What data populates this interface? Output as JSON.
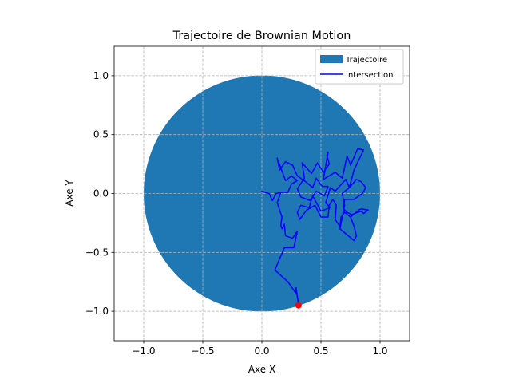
{
  "chart_data": {
    "type": "line",
    "title": "Trajectoire de Brownian Motion",
    "xlabel": "Axe X",
    "ylabel": "Axe Y",
    "xlim": [
      -1.25,
      1.25
    ],
    "ylim": [
      -1.25,
      1.25
    ],
    "aspect": "equal",
    "grid": true,
    "grid_style": "dashed",
    "legend_position": "upper-right",
    "xticks": [
      -1.0,
      -0.5,
      0.0,
      0.5,
      1.0
    ],
    "xtick_labels": [
      "−1.0",
      "−0.5",
      "0.0",
      "0.5",
      "1.0"
    ],
    "yticks": [
      -1.0,
      -0.5,
      0.0,
      0.5,
      1.0
    ],
    "ytick_labels": [
      "−1.0",
      "−0.5",
      "0.0",
      "0.5",
      "1.0"
    ],
    "circle": {
      "name": "Trajectoire",
      "center": [
        0,
        0
      ],
      "radius": 1.0,
      "color": "#1f77b4"
    },
    "series": [
      {
        "name": "Intersection",
        "color": "#0000ff",
        "points": [
          [
            0.0,
            0.02
          ],
          [
            0.06,
            0.0
          ],
          [
            0.09,
            -0.06
          ],
          [
            0.12,
            0.0
          ],
          [
            0.16,
            0.01
          ],
          [
            0.13,
            -0.08
          ],
          [
            0.17,
            -0.2
          ],
          [
            0.16,
            -0.27
          ],
          [
            0.17,
            -0.3
          ],
          [
            0.19,
            -0.26
          ],
          [
            0.2,
            -0.36
          ],
          [
            0.26,
            -0.38
          ],
          [
            0.3,
            -0.32
          ],
          [
            0.27,
            -0.46
          ],
          [
            0.19,
            -0.46
          ],
          [
            0.11,
            -0.65
          ],
          [
            0.22,
            -0.75
          ],
          [
            0.29,
            -0.85
          ],
          [
            0.29,
            -0.8
          ],
          [
            0.31,
            -0.95
          ]
        ]
      },
      {
        "name": "",
        "color": "#0000ff",
        "points": [
          [
            0.16,
            0.01
          ],
          [
            0.22,
            0.01
          ],
          [
            0.25,
            0.08
          ],
          [
            0.3,
            0.11
          ],
          [
            0.25,
            0.15
          ],
          [
            0.2,
            0.11
          ],
          [
            0.13,
            0.3
          ],
          [
            0.15,
            0.2
          ],
          [
            0.2,
            0.27
          ],
          [
            0.26,
            0.24
          ],
          [
            0.3,
            0.15
          ],
          [
            0.37,
            0.1
          ],
          [
            0.43,
            0.05
          ],
          [
            0.46,
            0.13
          ],
          [
            0.51,
            0.06
          ],
          [
            0.56,
            0.06
          ],
          [
            0.53,
            -0.02
          ],
          [
            0.46,
            0.02
          ],
          [
            0.41,
            -0.06
          ],
          [
            0.33,
            -0.03
          ],
          [
            0.3,
            0.04
          ],
          [
            0.36,
            0.13
          ],
          [
            0.34,
            0.26
          ],
          [
            0.42,
            0.17
          ],
          [
            0.47,
            0.26
          ],
          [
            0.52,
            0.18
          ],
          [
            0.57,
            0.25
          ],
          [
            0.55,
            0.32
          ],
          [
            0.56,
            0.35
          ],
          [
            0.52,
            0.12
          ],
          [
            0.62,
            0.18
          ],
          [
            0.68,
            0.13
          ],
          [
            0.7,
            0.22
          ],
          [
            0.72,
            0.32
          ],
          [
            0.75,
            0.24
          ],
          [
            0.81,
            0.38
          ],
          [
            0.86,
            0.37
          ],
          [
            0.78,
            0.2
          ],
          [
            0.74,
            0.05
          ],
          [
            0.71,
            0.12
          ],
          [
            0.62,
            0.02
          ],
          [
            0.58,
            0.05
          ],
          [
            0.54,
            -0.08
          ],
          [
            0.58,
            -0.12
          ],
          [
            0.5,
            -0.15
          ],
          [
            0.43,
            -0.02
          ],
          [
            0.4,
            -0.12
          ],
          [
            0.33,
            -0.1
          ],
          [
            0.3,
            -0.16
          ],
          [
            0.32,
            -0.22
          ],
          [
            0.38,
            -0.14
          ],
          [
            0.45,
            -0.1
          ],
          [
            0.5,
            -0.2
          ],
          [
            0.56,
            -0.2
          ],
          [
            0.57,
            -0.1
          ],
          [
            0.6,
            -0.05
          ],
          [
            0.63,
            -0.1
          ],
          [
            0.62,
            -0.22
          ],
          [
            0.66,
            -0.28
          ],
          [
            0.67,
            -0.2
          ],
          [
            0.7,
            -0.16
          ],
          [
            0.75,
            -0.2
          ],
          [
            0.78,
            -0.28
          ],
          [
            0.8,
            -0.36
          ],
          [
            0.78,
            -0.4
          ],
          [
            0.66,
            -0.3
          ],
          [
            0.7,
            -0.1
          ],
          [
            0.68,
            0.0
          ],
          [
            0.74,
            0.05
          ],
          [
            0.8,
            0.12
          ],
          [
            0.84,
            0.1
          ],
          [
            0.88,
            0.05
          ],
          [
            0.85,
            0.0
          ],
          [
            0.78,
            -0.05
          ],
          [
            0.7,
            -0.05
          ],
          [
            0.69,
            -0.13
          ],
          [
            0.72,
            -0.16
          ],
          [
            0.76,
            -0.18
          ],
          [
            0.84,
            -0.15
          ],
          [
            0.86,
            -0.17
          ],
          [
            0.9,
            -0.14
          ],
          [
            0.84,
            -0.13
          ],
          [
            0.82,
            -0.14
          ],
          [
            0.75,
            -0.2
          ]
        ]
      }
    ],
    "end_point": {
      "x": 0.31,
      "y": -0.95,
      "color": "#ff0000"
    },
    "legend": [
      {
        "label": "Trajectoire",
        "kind": "patch",
        "color": "#1f77b4"
      },
      {
        "label": "Intersection",
        "kind": "line",
        "color": "#0000ff"
      }
    ]
  }
}
